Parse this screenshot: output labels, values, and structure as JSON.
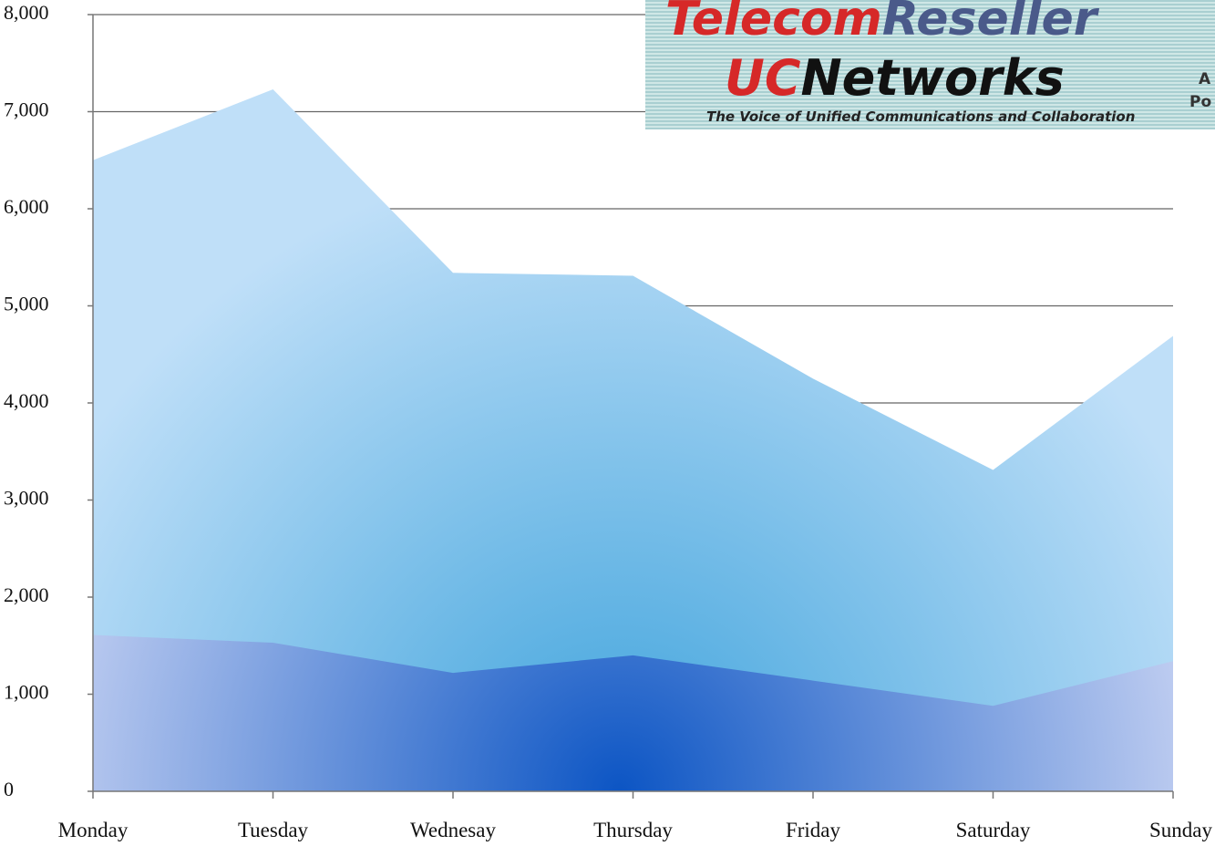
{
  "chart_data": {
    "type": "area",
    "categories": [
      "Monday",
      "Tuesday",
      "Wednesay",
      "Thursday",
      "Friday",
      "Saturday",
      "Sunday"
    ],
    "series": [
      {
        "color": "#3ea3dc",
        "values": [
          6500,
          7230,
          5340,
          5310,
          4250,
          3310,
          4690
        ]
      },
      {
        "color": "#0c55c4",
        "values": [
          1610,
          1530,
          1220,
          1400,
          1140,
          880,
          1340
        ]
      }
    ],
    "ylim": [
      0,
      8000
    ],
    "yticks": [
      0,
      {
        "value": 1000,
        "label": "1,000"
      },
      {
        "value": 2000,
        "label": "2,000"
      },
      {
        "value": 3000,
        "label": "3,000"
      },
      {
        "value": 4000,
        "label": "4,000"
      },
      {
        "value": 5000,
        "label": "5,000"
      },
      {
        "value": 6000,
        "label": "6,000"
      },
      {
        "value": 7000,
        "label": "7,000"
      },
      {
        "value": 8000,
        "label": "8,000"
      }
    ],
    "grid": true
  },
  "logo": {
    "telecom": "Telecom",
    "reseller": "Reseller",
    "uc": "UC",
    "networks": "Networks",
    "tagline": "The Voice of Unified Communications and Collaboration",
    "edge": [
      "A",
      "Po"
    ]
  }
}
